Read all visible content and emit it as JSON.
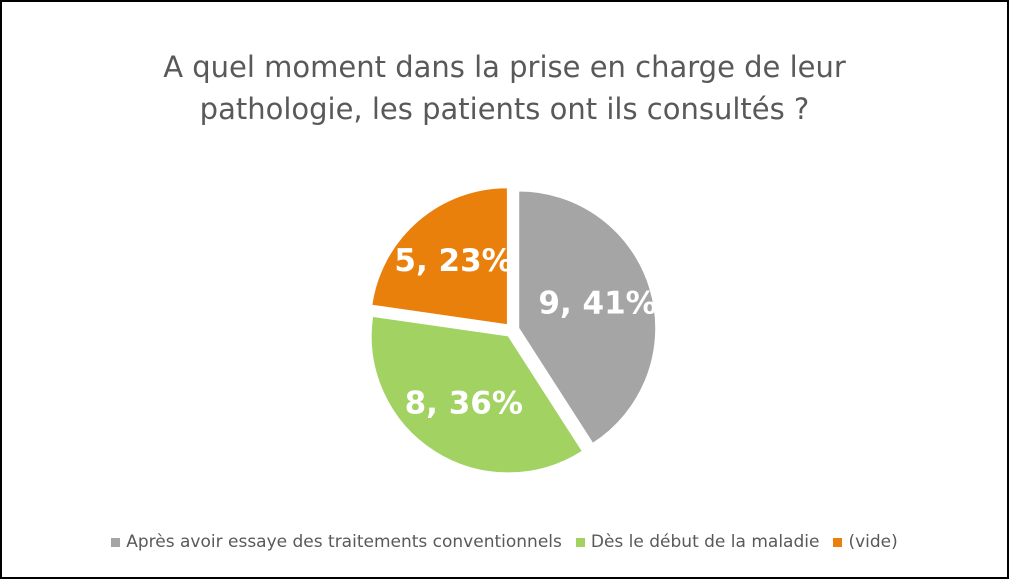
{
  "chart_data": {
    "type": "pie",
    "title": "A quel moment dans la prise en charge de leur pathologie, les patients ont ils consultés ?",
    "categories": [
      "Après avoir essaye des traitements conventionnels",
      "Dès le début de la maladie",
      "(vide)"
    ],
    "values": [
      9,
      8,
      5
    ],
    "value_labels": [
      "9, 41%",
      "8, 36%",
      "5, 23%"
    ],
    "colors": [
      "#a5a5a5",
      "#a1d262",
      "#ea800c"
    ],
    "legend": "bottom"
  }
}
